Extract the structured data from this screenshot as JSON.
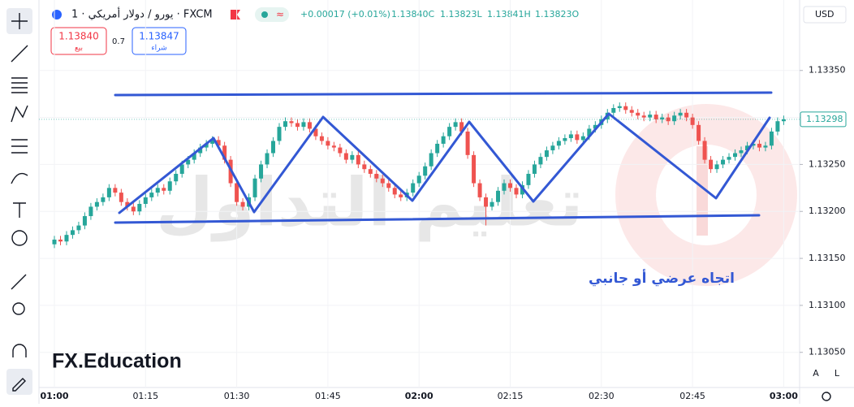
{
  "header": {
    "symbol": "يورو / دولار أمريكي · 1 · FXCM",
    "change": "+0.00017 (+0.01%)",
    "close": "1.13840C",
    "low": "1.13823L",
    "high": "1.13841H",
    "open": "1.13823O"
  },
  "trade": {
    "sell_price": "1.13840",
    "sell_label": "بيع",
    "spread": "0.7",
    "buy_price": "1.13847",
    "buy_label": "شراء"
  },
  "currency": "USD",
  "scale_buttons": [
    "A",
    "L"
  ],
  "watermark": "تعليم التداول",
  "brand": "FX.Education",
  "chart_data": {
    "type": "candlestick",
    "annotation": "اتجاه عرضي أو جانبي",
    "up_color": "#26a69a",
    "down_color": "#ef5350",
    "last_price": {
      "value": 1.13298,
      "label": "1.13298"
    },
    "ylim": [
      1.1301,
      1.13425
    ],
    "yticks": [
      {
        "value": 1.1335,
        "label": "1.13350"
      },
      {
        "value": 1.133,
        "label": "1.13300"
      },
      {
        "value": 1.1325,
        "label": "1.13250"
      },
      {
        "value": 1.132,
        "label": "1.13200"
      },
      {
        "value": 1.1315,
        "label": "1.13150"
      },
      {
        "value": 1.131,
        "label": "1.13100"
      },
      {
        "value": 1.1305,
        "label": "1.13050"
      }
    ],
    "xticks": [
      "01:00",
      "01:15",
      "01:30",
      "01:45",
      "02:00",
      "02:15",
      "02:30",
      "02:45",
      "03:00"
    ],
    "open": [
      1.13165,
      1.1317,
      1.13168,
      1.13175,
      1.1318,
      1.13185,
      1.13195,
      1.13205,
      1.1321,
      1.13215,
      1.13225,
      1.1322,
      1.1321,
      1.13205,
      1.132,
      1.13208,
      1.13215,
      1.1322,
      1.13225,
      1.13222,
      1.13232,
      1.1324,
      1.1325,
      1.13255,
      1.13262,
      1.13268,
      1.13272,
      1.13276,
      1.1327,
      1.13255,
      1.1323,
      1.1321,
      1.13205,
      1.13215,
      1.13235,
      1.1325,
      1.13262,
      1.13275,
      1.1329,
      1.13296,
      1.13294,
      1.1329,
      1.13295,
      1.13288,
      1.1328,
      1.13275,
      1.1327,
      1.13268,
      1.13262,
      1.13255,
      1.1326,
      1.1325,
      1.13245,
      1.1324,
      1.13235,
      1.1323,
      1.13225,
      1.13218,
      1.13215,
      1.1322,
      1.1323,
      1.13238,
      1.13248,
      1.13262,
      1.13272,
      1.1328,
      1.1329,
      1.13295,
      1.13285,
      1.1326,
      1.1323,
      1.13215,
      1.13205,
      1.1321,
      1.13222,
      1.1323,
      1.13225,
      1.13218,
      1.13228,
      1.1324,
      1.1325,
      1.13258,
      1.13265,
      1.1327,
      1.13275,
      1.13278,
      1.13282,
      1.13276,
      1.1328,
      1.13288,
      1.13292,
      1.13298,
      1.13305,
      1.1331,
      1.13312,
      1.13308,
      1.13305,
      1.13302,
      1.133,
      1.13303,
      1.13298,
      1.133,
      1.13296,
      1.13302,
      1.13305,
      1.133,
      1.13292,
      1.13275,
      1.13255,
      1.13245,
      1.1325,
      1.13255,
      1.13258,
      1.13262,
      1.13265,
      1.1327,
      1.13272,
      1.13268,
      1.1327,
      1.13285,
      1.13296
    ],
    "high": [
      1.13174,
      1.13174,
      1.13179,
      1.13184,
      1.13189,
      1.13199,
      1.13209,
      1.13214,
      1.13219,
      1.13229,
      1.13229,
      1.13224,
      1.13214,
      1.13209,
      1.13212,
      1.13219,
      1.13224,
      1.13229,
      1.13229,
      1.13236,
      1.13244,
      1.13254,
      1.13259,
      1.13266,
      1.13272,
      1.13276,
      1.1328,
      1.1328,
      1.13274,
      1.13259,
      1.13234,
      1.13214,
      1.13219,
      1.13239,
      1.13254,
      1.13266,
      1.13279,
      1.13294,
      1.133,
      1.133,
      1.13298,
      1.13299,
      1.13299,
      1.13292,
      1.13284,
      1.13279,
      1.13274,
      1.13272,
      1.13266,
      1.13264,
      1.13264,
      1.13254,
      1.13249,
      1.13244,
      1.13239,
      1.13234,
      1.13229,
      1.13222,
      1.13224,
      1.13234,
      1.13242,
      1.13252,
      1.13266,
      1.13276,
      1.13284,
      1.13294,
      1.13299,
      1.13299,
      1.13289,
      1.13264,
      1.13234,
      1.13219,
      1.13214,
      1.13226,
      1.13234,
      1.13234,
      1.13229,
      1.13232,
      1.13244,
      1.13254,
      1.13262,
      1.13269,
      1.13274,
      1.13279,
      1.13282,
      1.13286,
      1.13286,
      1.13284,
      1.13292,
      1.13296,
      1.13302,
      1.13309,
      1.13314,
      1.13316,
      1.13316,
      1.13312,
      1.13309,
      1.13306,
      1.13307,
      1.13307,
      1.13304,
      1.13304,
      1.13306,
      1.13309,
      1.13309,
      1.13304,
      1.13296,
      1.13279,
      1.13259,
      1.13254,
      1.13259,
      1.13262,
      1.13266,
      1.13269,
      1.13274,
      1.13276,
      1.13276,
      1.13274,
      1.13289,
      1.133,
      1.13302
    ],
    "low": [
      1.13161,
      1.13164,
      1.13164,
      1.13171,
      1.13176,
      1.13181,
      1.13191,
      1.13201,
      1.13206,
      1.13211,
      1.13216,
      1.13206,
      1.13201,
      1.13196,
      1.13196,
      1.13204,
      1.13211,
      1.13216,
      1.13218,
      1.13218,
      1.13228,
      1.13236,
      1.13246,
      1.13251,
      1.13258,
      1.13264,
      1.13268,
      1.13266,
      1.13251,
      1.13226,
      1.13206,
      1.13201,
      1.13201,
      1.13211,
      1.13231,
      1.13246,
      1.13258,
      1.13271,
      1.13286,
      1.1329,
      1.13286,
      1.13286,
      1.13284,
      1.13276,
      1.13271,
      1.13266,
      1.13264,
      1.13258,
      1.13251,
      1.13251,
      1.13246,
      1.13241,
      1.13236,
      1.13231,
      1.13226,
      1.13221,
      1.13214,
      1.13211,
      1.13211,
      1.13216,
      1.13226,
      1.13234,
      1.13244,
      1.13258,
      1.13268,
      1.13276,
      1.13286,
      1.13281,
      1.13256,
      1.13226,
      1.13211,
      1.13185,
      1.13201,
      1.13206,
      1.13218,
      1.13221,
      1.13214,
      1.13214,
      1.13224,
      1.13236,
      1.13246,
      1.13254,
      1.13261,
      1.13266,
      1.13271,
      1.13274,
      1.13272,
      1.13272,
      1.13276,
      1.13284,
      1.13288,
      1.13294,
      1.13301,
      1.13306,
      1.13304,
      1.13301,
      1.13298,
      1.13296,
      1.13296,
      1.13294,
      1.13294,
      1.13292,
      1.13292,
      1.13298,
      1.13296,
      1.13288,
      1.13271,
      1.13251,
      1.13241,
      1.13241,
      1.13246,
      1.13251,
      1.13254,
      1.13258,
      1.13261,
      1.13266,
      1.13264,
      1.13264,
      1.13266,
      1.13281,
      1.13292
    ],
    "close": [
      1.1317,
      1.13168,
      1.13175,
      1.1318,
      1.13185,
      1.13195,
      1.13205,
      1.1321,
      1.13215,
      1.13225,
      1.1322,
      1.1321,
      1.13205,
      1.132,
      1.13208,
      1.13215,
      1.1322,
      1.13225,
      1.13222,
      1.13232,
      1.1324,
      1.1325,
      1.13255,
      1.13262,
      1.13268,
      1.13272,
      1.13276,
      1.1327,
      1.13255,
      1.1323,
      1.1321,
      1.13205,
      1.13215,
      1.13235,
      1.1325,
      1.13262,
      1.13275,
      1.1329,
      1.13296,
      1.13294,
      1.1329,
      1.13295,
      1.13288,
      1.1328,
      1.13275,
      1.1327,
      1.13268,
      1.13262,
      1.13255,
      1.1326,
      1.1325,
      1.13245,
      1.1324,
      1.13235,
      1.1323,
      1.13225,
      1.13218,
      1.13215,
      1.1322,
      1.1323,
      1.13238,
      1.13248,
      1.13262,
      1.13272,
      1.1328,
      1.1329,
      1.13295,
      1.13285,
      1.1326,
      1.1323,
      1.13215,
      1.13205,
      1.1321,
      1.13222,
      1.1323,
      1.13225,
      1.13218,
      1.13228,
      1.1324,
      1.1325,
      1.13258,
      1.13265,
      1.1327,
      1.13275,
      1.13278,
      1.13282,
      1.13276,
      1.1328,
      1.13288,
      1.13292,
      1.13298,
      1.13305,
      1.1331,
      1.13312,
      1.13308,
      1.13305,
      1.13302,
      1.133,
      1.13303,
      1.13298,
      1.133,
      1.13296,
      1.13302,
      1.13305,
      1.133,
      1.13292,
      1.13275,
      1.13255,
      1.13245,
      1.1325,
      1.13255,
      1.13258,
      1.13262,
      1.13265,
      1.1327,
      1.13272,
      1.13268,
      1.1327,
      1.13285,
      1.13296,
      1.13298
    ]
  }
}
